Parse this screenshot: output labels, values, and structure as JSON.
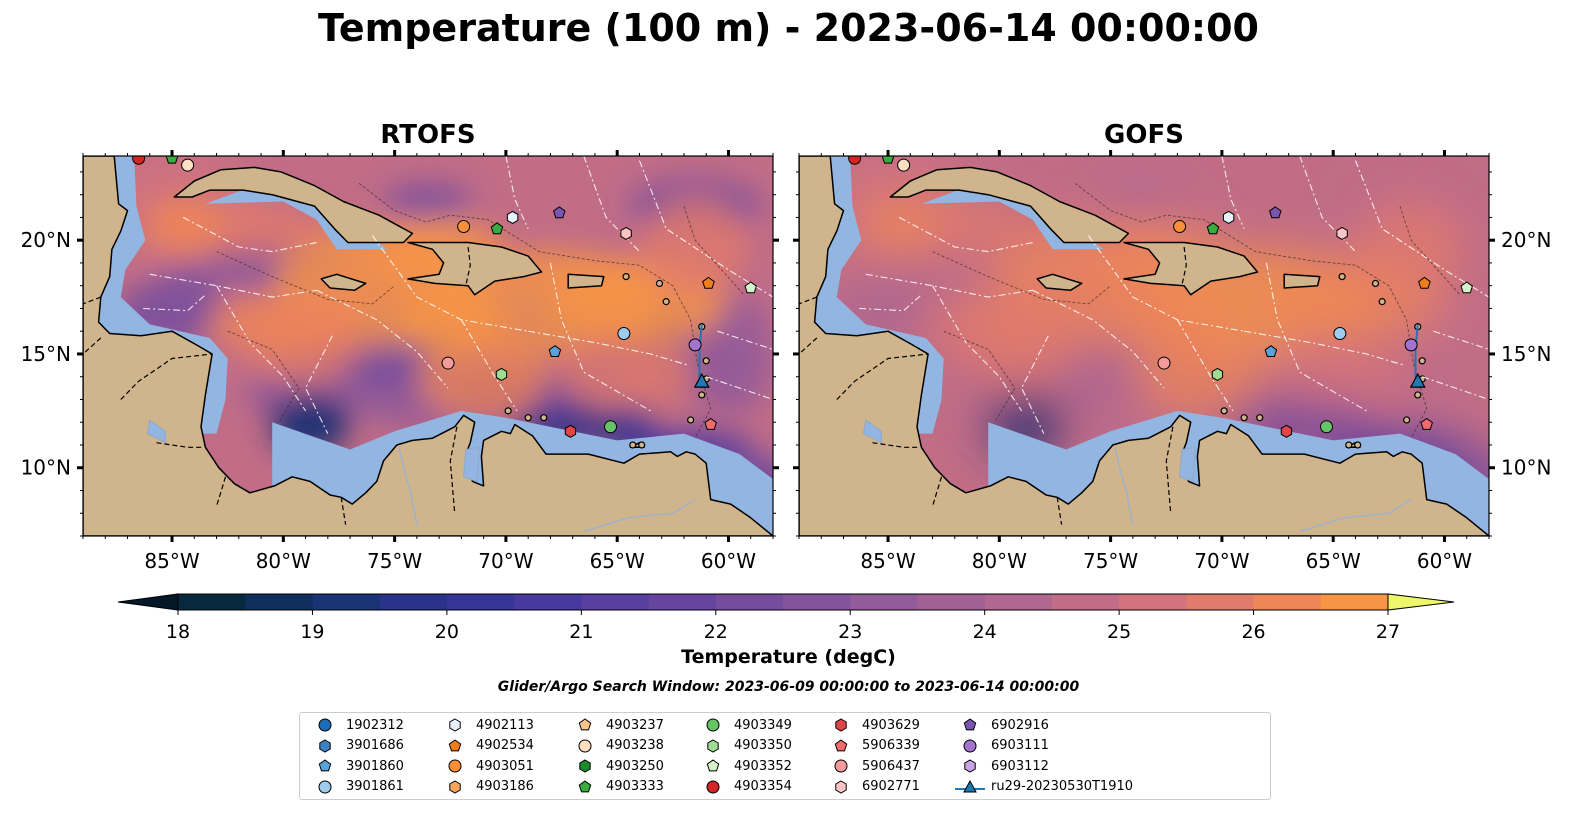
{
  "title": "Temperature (100 m) - 2023-06-14 00:00:00",
  "panels": [
    {
      "title": "RTOFS",
      "variant": "rtofs"
    },
    {
      "title": "GOFS",
      "variant": "gofs"
    }
  ],
  "map_extent": {
    "lon_min": -89,
    "lon_max": -58,
    "lat_min": 7,
    "lat_max": 23.7
  },
  "lon_ticks": [
    {
      "value": -85,
      "label": "85°W"
    },
    {
      "value": -80,
      "label": "80°W"
    },
    {
      "value": -75,
      "label": "75°W"
    },
    {
      "value": -70,
      "label": "70°W"
    },
    {
      "value": -65,
      "label": "65°W"
    },
    {
      "value": -60,
      "label": "60°W"
    }
  ],
  "lat_ticks": [
    {
      "value": 10,
      "label": "10°N"
    },
    {
      "value": 15,
      "label": "15°N"
    },
    {
      "value": 20,
      "label": "20°N"
    }
  ],
  "colors": {
    "land": "#d0b48c",
    "shelf": "#93b5e1",
    "coast": "#000000"
  },
  "colorbar": {
    "label": "Temperature (degC)",
    "min": 18,
    "max": 27,
    "step": 0.5,
    "ticks": [
      18,
      19,
      20,
      21,
      22,
      23,
      24,
      25,
      26,
      27
    ],
    "colors": [
      "#07283f",
      "#0e2f5c",
      "#1a3374",
      "#283389",
      "#363598",
      "#47399e",
      "#573e9f",
      "#66459f",
      "#744d9e",
      "#83549c",
      "#925b99",
      "#a16195",
      "#b06790",
      "#c16d87",
      "#d2737d",
      "#e17b6c",
      "#ed8658",
      "#f69546",
      "#fba740",
      "#fdba44",
      "#fbcd4d",
      "#f5e35a",
      "#eef66a"
    ],
    "under_color": "#04182a",
    "over_color": "#eef66a"
  },
  "search_window": "Glider/Argo Search Window: 2023-06-09 00:00:00 to 2023-06-14 00:00:00",
  "legend": [
    {
      "label": "1902312",
      "marker": "circle",
      "color": "#1f6eb5"
    },
    {
      "label": "3901686",
      "marker": "hexagon",
      "color": "#3f82c2"
    },
    {
      "label": "3901860",
      "marker": "pentagon",
      "color": "#5aa3d8"
    },
    {
      "label": "3901861",
      "marker": "circle",
      "color": "#9fcbec"
    },
    {
      "label": "4902113",
      "marker": "hexagon",
      "color": "#e6f1fb"
    },
    {
      "label": "4902534",
      "marker": "pentagon",
      "color": "#f07d1c"
    },
    {
      "label": "4903051",
      "marker": "circle",
      "color": "#fb9038"
    },
    {
      "label": "4903186",
      "marker": "hexagon",
      "color": "#f9a55c"
    },
    {
      "label": "4903237",
      "marker": "pentagon",
      "color": "#fbc48f"
    },
    {
      "label": "4903238",
      "marker": "circle",
      "color": "#fde0c3"
    },
    {
      "label": "4903250",
      "marker": "hexagon",
      "color": "#1d8a2c"
    },
    {
      "label": "4903333",
      "marker": "pentagon",
      "color": "#3aab3e"
    },
    {
      "label": "4903349",
      "marker": "circle",
      "color": "#66c466"
    },
    {
      "label": "4903350",
      "marker": "hexagon",
      "color": "#9edd92"
    },
    {
      "label": "4903352",
      "marker": "pentagon",
      "color": "#d3f2c9"
    },
    {
      "label": "4903354",
      "marker": "circle",
      "color": "#d42424"
    },
    {
      "label": "4903629",
      "marker": "hexagon",
      "color": "#e14546"
    },
    {
      "label": "5906339",
      "marker": "pentagon",
      "color": "#ee6c6c"
    },
    {
      "label": "5906437",
      "marker": "circle",
      "color": "#f49a9a"
    },
    {
      "label": "6902771",
      "marker": "hexagon",
      "color": "#fbc5c5"
    },
    {
      "label": "6902916",
      "marker": "pentagon",
      "color": "#7b55b0"
    },
    {
      "label": "6903111",
      "marker": "circle",
      "color": "#a274d0"
    },
    {
      "label": "6903112",
      "marker": "hexagon",
      "color": "#c7a5e4"
    },
    {
      "label": "ru29-20230530T1910",
      "marker": "triangle-line",
      "color": "#1f77b4"
    }
  ],
  "floats": [
    {
      "id": "4903354",
      "lon": -86.5,
      "lat": 23.6
    },
    {
      "id": "4903333",
      "lon": -85.0,
      "lat": 23.6
    },
    {
      "id": "4903238",
      "lon": -84.3,
      "lat": 23.3
    },
    {
      "id": "4903051",
      "lon": -71.9,
      "lat": 20.6
    },
    {
      "id": "4903333",
      "lon": -70.4,
      "lat": 20.5
    },
    {
      "id": "4902113",
      "lon": -69.7,
      "lat": 21.0
    },
    {
      "id": "6902916",
      "lon": -67.6,
      "lat": 21.2
    },
    {
      "id": "6902771",
      "lon": -64.6,
      "lat": 20.3
    },
    {
      "id": "4902534",
      "lon": -60.9,
      "lat": 18.1
    },
    {
      "id": "4903352",
      "lon": -59.0,
      "lat": 17.9
    },
    {
      "id": "3901861",
      "lon": -64.7,
      "lat": 15.9
    },
    {
      "id": "3901860",
      "lon": -67.8,
      "lat": 15.1
    },
    {
      "id": "6903111",
      "lon": -61.5,
      "lat": 15.4
    },
    {
      "id": "5906437",
      "lon": -72.6,
      "lat": 14.6
    },
    {
      "id": "4903350",
      "lon": -70.2,
      "lat": 14.1
    },
    {
      "id": "4903629",
      "lon": -67.1,
      "lat": 11.6
    },
    {
      "id": "4903349",
      "lon": -65.3,
      "lat": 11.8
    },
    {
      "id": "5906339",
      "lon": -60.8,
      "lat": 11.9
    }
  ],
  "glider_track": [
    {
      "lon": -61.2,
      "lat": 16.3
    },
    {
      "lon": -61.3,
      "lat": 15.2
    },
    {
      "lon": -61.3,
      "lat": 14.0
    },
    {
      "lon": -61.2,
      "lat": 13.5
    }
  ]
}
